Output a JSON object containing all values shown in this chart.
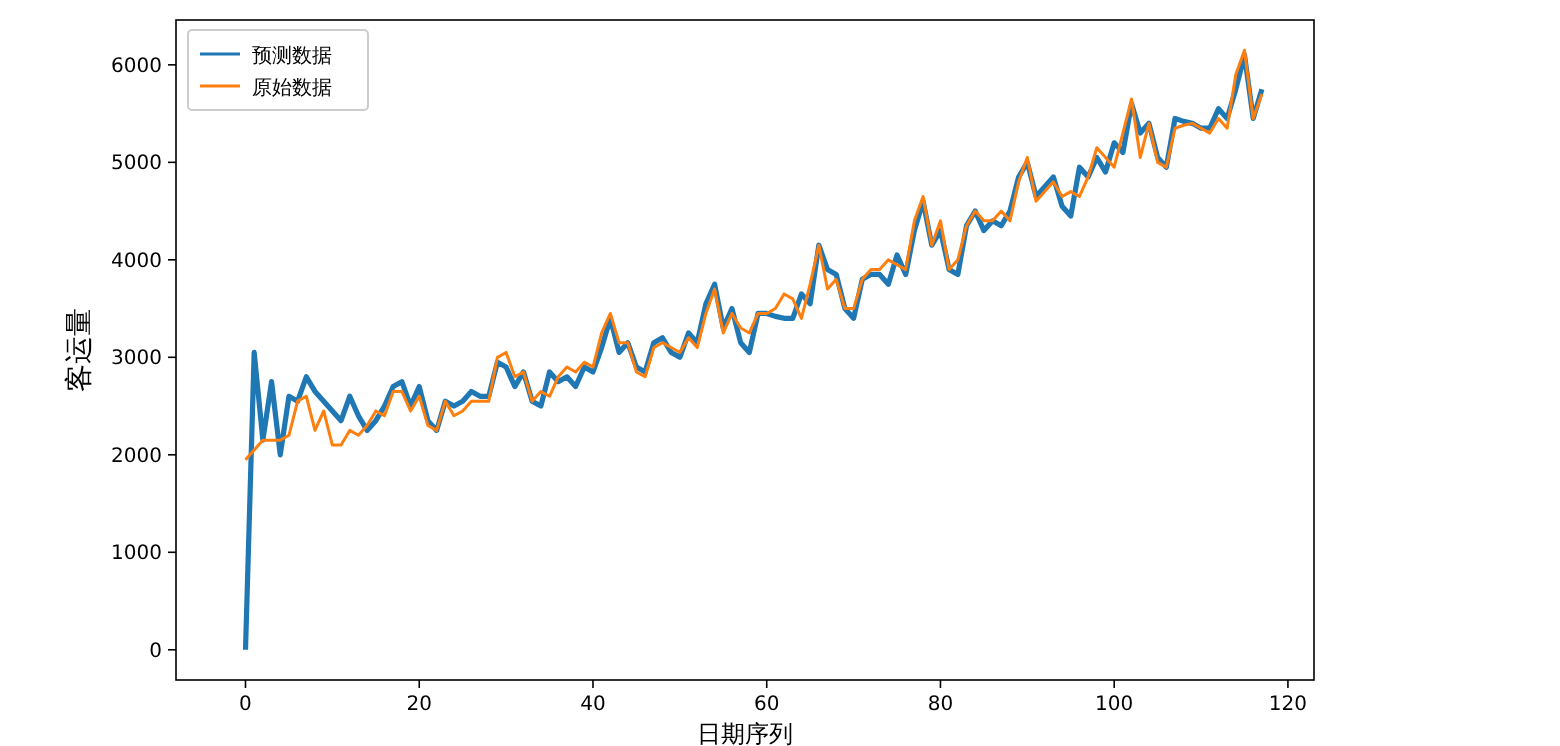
{
  "chart_data": {
    "type": "line",
    "xlabel": "日期序列",
    "ylabel": "客运量",
    "legend": "top left",
    "grid": false,
    "marker": "none",
    "line_style": "solid",
    "xlim": [
      -8,
      123
    ],
    "ylim": [
      -310,
      6460
    ],
    "xticks": [
      0,
      20,
      40,
      60,
      80,
      100,
      120
    ],
    "yticks": [
      0,
      1000,
      2000,
      3000,
      4000,
      5000,
      6000
    ],
    "x": [
      0,
      1,
      2,
      3,
      4,
      5,
      6,
      7,
      8,
      9,
      10,
      11,
      12,
      13,
      14,
      15,
      16,
      17,
      18,
      19,
      20,
      21,
      22,
      23,
      24,
      25,
      26,
      27,
      28,
      29,
      30,
      31,
      32,
      33,
      34,
      35,
      36,
      37,
      38,
      39,
      40,
      41,
      42,
      43,
      44,
      45,
      46,
      47,
      48,
      49,
      50,
      51,
      52,
      53,
      54,
      55,
      56,
      57,
      58,
      59,
      60,
      61,
      62,
      63,
      64,
      65,
      66,
      67,
      68,
      69,
      70,
      71,
      72,
      73,
      74,
      75,
      76,
      77,
      78,
      79,
      80,
      81,
      82,
      83,
      84,
      85,
      86,
      87,
      88,
      89,
      90,
      91,
      92,
      93,
      94,
      95,
      96,
      97,
      98,
      99,
      100,
      101,
      102,
      103,
      104,
      105,
      106,
      107,
      108,
      109,
      110,
      111,
      112,
      113,
      114,
      115,
      116,
      117
    ],
    "series": [
      {
        "name": "预测数据",
        "color": "#1f77b4",
        "values": [
          0,
          3050,
          2150,
          2750,
          2000,
          2600,
          2550,
          2800,
          2650,
          2550,
          2450,
          2350,
          2600,
          2400,
          2250,
          2350,
          2500,
          2700,
          2750,
          2500,
          2700,
          2350,
          2250,
          2550,
          2500,
          2550,
          2650,
          2600,
          2600,
          2950,
          2900,
          2700,
          2850,
          2550,
          2500,
          2850,
          2750,
          2800,
          2700,
          2900,
          2850,
          3100,
          3400,
          3050,
          3150,
          2900,
          2850,
          3150,
          3200,
          3050,
          3000,
          3250,
          3150,
          3550,
          3750,
          3300,
          3500,
          3150,
          3050,
          3450,
          3450,
          3420,
          3400,
          3400,
          3650,
          3550,
          4150,
          3900,
          3850,
          3500,
          3400,
          3800,
          3850,
          3850,
          3750,
          4050,
          3850,
          4300,
          4600,
          4150,
          4300,
          3900,
          3850,
          4350,
          4500,
          4300,
          4400,
          4350,
          4500,
          4850,
          5000,
          4650,
          4750,
          4850,
          4550,
          4450,
          4950,
          4850,
          5050,
          4900,
          5200,
          5100,
          5600,
          5300,
          5400,
          5050,
          4950,
          5450,
          5420,
          5400,
          5350,
          5350,
          5550,
          5450,
          5750,
          6100,
          5450,
          5750
        ]
      },
      {
        "name": "原始数据",
        "color": "#ff7f0e",
        "values": [
          1950,
          2050,
          2150,
          2150,
          2150,
          2200,
          2550,
          2600,
          2250,
          2450,
          2100,
          2100,
          2250,
          2200,
          2300,
          2450,
          2400,
          2650,
          2650,
          2450,
          2600,
          2300,
          2250,
          2550,
          2400,
          2450,
          2550,
          2550,
          2550,
          3000,
          3050,
          2800,
          2850,
          2550,
          2650,
          2600,
          2800,
          2900,
          2850,
          2950,
          2900,
          3250,
          3450,
          3150,
          3150,
          2850,
          2800,
          3100,
          3150,
          3100,
          3050,
          3200,
          3100,
          3450,
          3700,
          3250,
          3450,
          3300,
          3250,
          3450,
          3450,
          3500,
          3650,
          3600,
          3400,
          3750,
          4150,
          3700,
          3800,
          3500,
          3500,
          3800,
          3900,
          3900,
          4000,
          3950,
          3900,
          4400,
          4650,
          4150,
          4400,
          3900,
          4000,
          4350,
          4500,
          4400,
          4400,
          4500,
          4400,
          4800,
          5050,
          4600,
          4700,
          4800,
          4650,
          4700,
          4650,
          4850,
          5150,
          5050,
          4950,
          5300,
          5650,
          5050,
          5400,
          5000,
          4950,
          5350,
          5380,
          5400,
          5350,
          5300,
          5450,
          5350,
          5900,
          6150,
          5450,
          5700
        ]
      }
    ]
  }
}
